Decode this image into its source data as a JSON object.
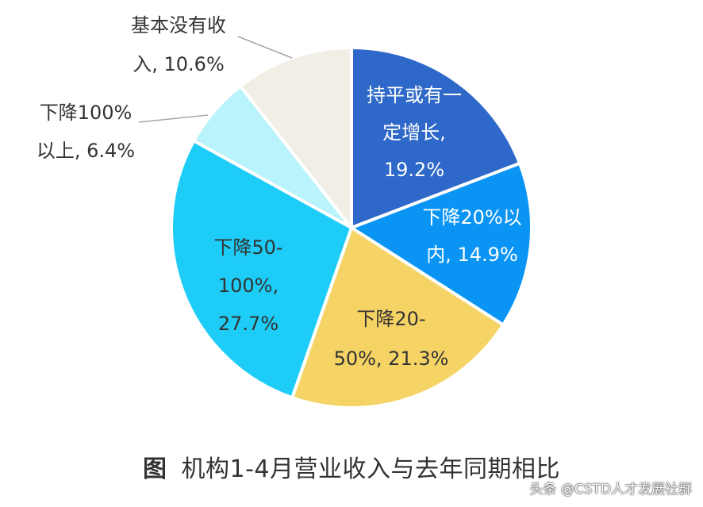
{
  "chart_data": {
    "type": "pie",
    "slices": [
      {
        "label_lines": [
          "持平或有一",
          "定增长,",
          "19.2%"
        ],
        "value": 19.2,
        "color": "#2E68C8",
        "label_color": "#ffffff"
      },
      {
        "label_lines": [
          "下降20%以",
          "内, 14.9%"
        ],
        "value": 14.9,
        "color": "#0A95F5",
        "label_color": "#ffffff"
      },
      {
        "label_lines": [
          "下降20-",
          "50%, 21.3%"
        ],
        "value": 21.3,
        "color": "#F5D365",
        "label_color": "#333333"
      },
      {
        "label_lines": [
          "下降50-",
          "100%,",
          "27.7%"
        ],
        "value": 27.7,
        "color": "#1ECDF7",
        "label_color": "#333333"
      },
      {
        "label_lines": [
          "下降100%",
          "以上, 6.4%"
        ],
        "value": 6.4,
        "color": "#B9F3FB",
        "label_color": "#333333"
      },
      {
        "label_lines": [
          "基本没有收",
          "入, 10.6%"
        ],
        "value": 10.6,
        "color": "#F1EEE6",
        "label_color": "#333333"
      }
    ]
  },
  "caption": {
    "prefix": "图",
    "text": "机构1-4月营业收入与去年同期相比"
  },
  "watermark": "头条 @CSTD人才发展社群"
}
